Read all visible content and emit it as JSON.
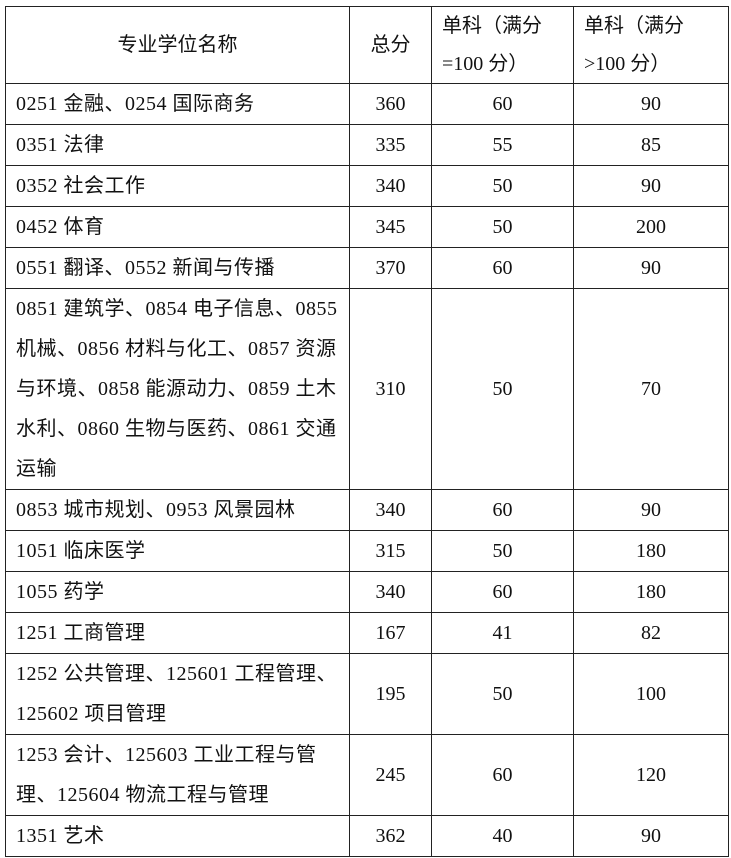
{
  "header": {
    "name": "专业学位名称",
    "total": "总分",
    "single_100_line1": "单科（满分",
    "single_100_line2": "=100 分）",
    "single_gt100_line1": "单科（满分",
    "single_gt100_line2": ">100 分）"
  },
  "rows": [
    {
      "name": "0251 金融、0254 国际商务",
      "total": "360",
      "s100": "60",
      "sgt100": "90"
    },
    {
      "name": "0351 法律",
      "total": "335",
      "s100": "55",
      "sgt100": "85"
    },
    {
      "name": "0352 社会工作",
      "total": "340",
      "s100": "50",
      "sgt100": "90"
    },
    {
      "name": "0452 体育",
      "total": "345",
      "s100": "50",
      "sgt100": "200"
    },
    {
      "name": "0551 翻译、0552 新闻与传播",
      "total": "370",
      "s100": "60",
      "sgt100": "90"
    },
    {
      "name": "0851 建筑学、0854 电子信息、0855 机械、0856 材料与化工、0857 资源与环境、0858 能源动力、0859 土木水利、0860 生物与医药、0861 交通运输",
      "total": "310",
      "s100": "50",
      "sgt100": "70"
    },
    {
      "name": "0853 城市规划、0953 风景园林",
      "total": "340",
      "s100": "60",
      "sgt100": "90"
    },
    {
      "name": "1051 临床医学",
      "total": "315",
      "s100": "50",
      "sgt100": "180"
    },
    {
      "name": "1055 药学",
      "total": "340",
      "s100": "60",
      "sgt100": "180"
    },
    {
      "name": "1251 工商管理",
      "total": "167",
      "s100": "41",
      "sgt100": "82"
    },
    {
      "name": "1252 公共管理、125601 工程管理、125602 项目管理",
      "total": "195",
      "s100": "50",
      "sgt100": "100"
    },
    {
      "name": "1253 会计、125603 工业工程与管理、125604 物流工程与管理",
      "total": "245",
      "s100": "60",
      "sgt100": "120"
    },
    {
      "name": "1351 艺术",
      "total": "362",
      "s100": "40",
      "sgt100": "90"
    }
  ]
}
